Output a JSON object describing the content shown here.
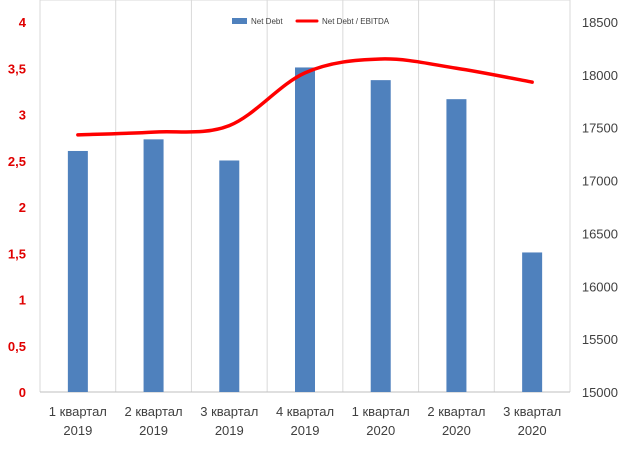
{
  "chart_data": {
    "type": "bar",
    "categories": [
      [
        "1 квартал",
        "2019"
      ],
      [
        "2 квартал",
        "2019"
      ],
      [
        "3 квартал",
        "2019"
      ],
      [
        "4 квартал",
        "2019"
      ],
      [
        "1 квартал",
        "2020"
      ],
      [
        "2 квартал",
        "2020"
      ],
      [
        "3 квартал",
        "2020"
      ]
    ],
    "series": [
      {
        "name": "Net Debt",
        "type": "bar",
        "axis": "right",
        "color": "#4f81bd",
        "values": [
          17280,
          17390,
          17190,
          18070,
          17950,
          17770,
          16320
        ]
      },
      {
        "name": "Net Debt / EBITDA",
        "type": "line",
        "smooth": true,
        "axis": "left",
        "color": "#ff0000",
        "values": [
          2.78,
          2.81,
          2.88,
          3.45,
          3.6,
          3.5,
          3.35
        ]
      }
    ],
    "y_left": {
      "min": 0,
      "max": 4,
      "step": 0.5,
      "tick_labels": [
        "0",
        "0,5",
        "1",
        "1,5",
        "2",
        "2,5",
        "3",
        "3,5",
        "4"
      ]
    },
    "y_right": {
      "min": 15000,
      "max": 18500,
      "step": 500,
      "tick_labels": [
        "15000",
        "15500",
        "16000",
        "16500",
        "17000",
        "17500",
        "18000",
        "18500"
      ]
    },
    "grid": "vertical",
    "legend_position": "top-center"
  }
}
